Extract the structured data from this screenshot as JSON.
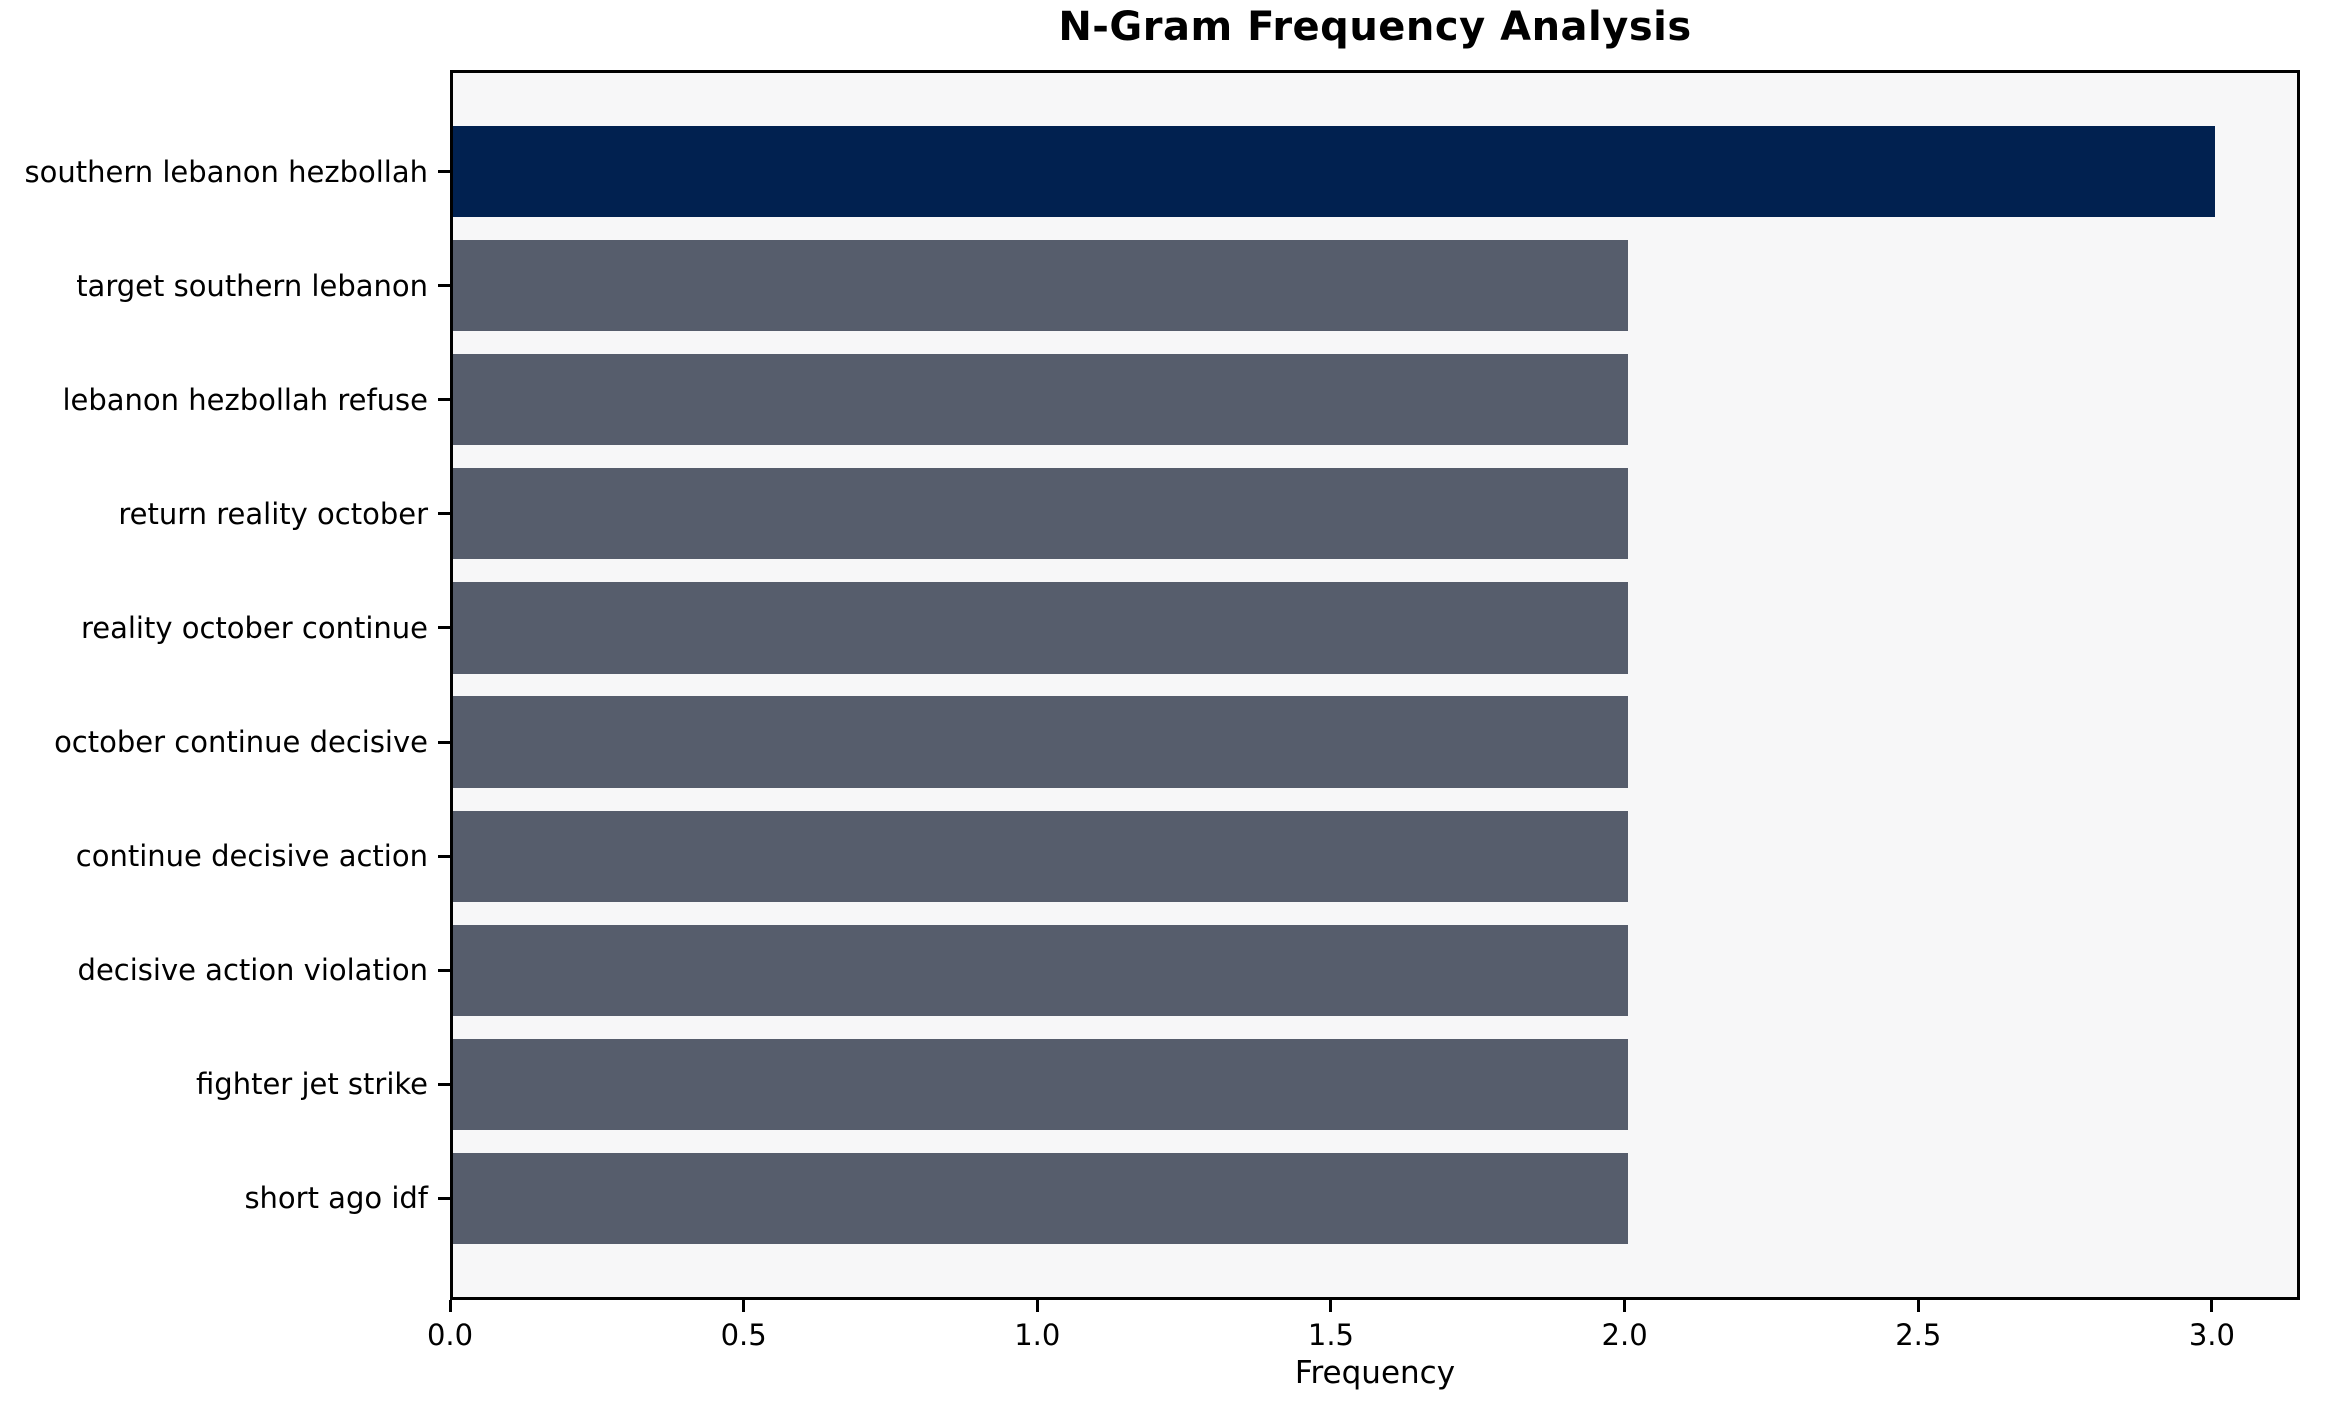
{
  "chart_data": {
    "type": "bar",
    "orientation": "horizontal",
    "title": "N-Gram Frequency Analysis",
    "xlabel": "Frequency",
    "ylabel": "",
    "categories": [
      "southern lebanon hezbollah",
      "target southern lebanon",
      "lebanon hezbollah refuse",
      "return reality october",
      "reality october continue",
      "october continue decisive",
      "continue decisive action",
      "decisive action violation",
      "fighter jet strike",
      "short ago idf"
    ],
    "values": [
      3,
      2,
      2,
      2,
      2,
      2,
      2,
      2,
      2,
      2
    ],
    "bar_colors": [
      "#012150",
      "#565d6c",
      "#565d6c",
      "#565d6c",
      "#565d6c",
      "#565d6c",
      "#565d6c",
      "#565d6c",
      "#565d6c",
      "#565d6c"
    ],
    "xlim": [
      0,
      3.15
    ],
    "xticks": [
      {
        "value": 0.0,
        "label": "0.0"
      },
      {
        "value": 0.5,
        "label": "0.5"
      },
      {
        "value": 1.0,
        "label": "1.0"
      },
      {
        "value": 1.5,
        "label": "1.5"
      },
      {
        "value": 2.0,
        "label": "2.0"
      },
      {
        "value": 2.5,
        "label": "2.5"
      },
      {
        "value": 3.0,
        "label": "3.0"
      }
    ],
    "grid": false,
    "legend": "none",
    "colors": {
      "highlight_bar": "#012150",
      "default_bar": "#565d6c",
      "plot_background": "#f7f7f8",
      "figure_background": "#ffffff",
      "spine": "#000000",
      "text": "#000000"
    }
  }
}
